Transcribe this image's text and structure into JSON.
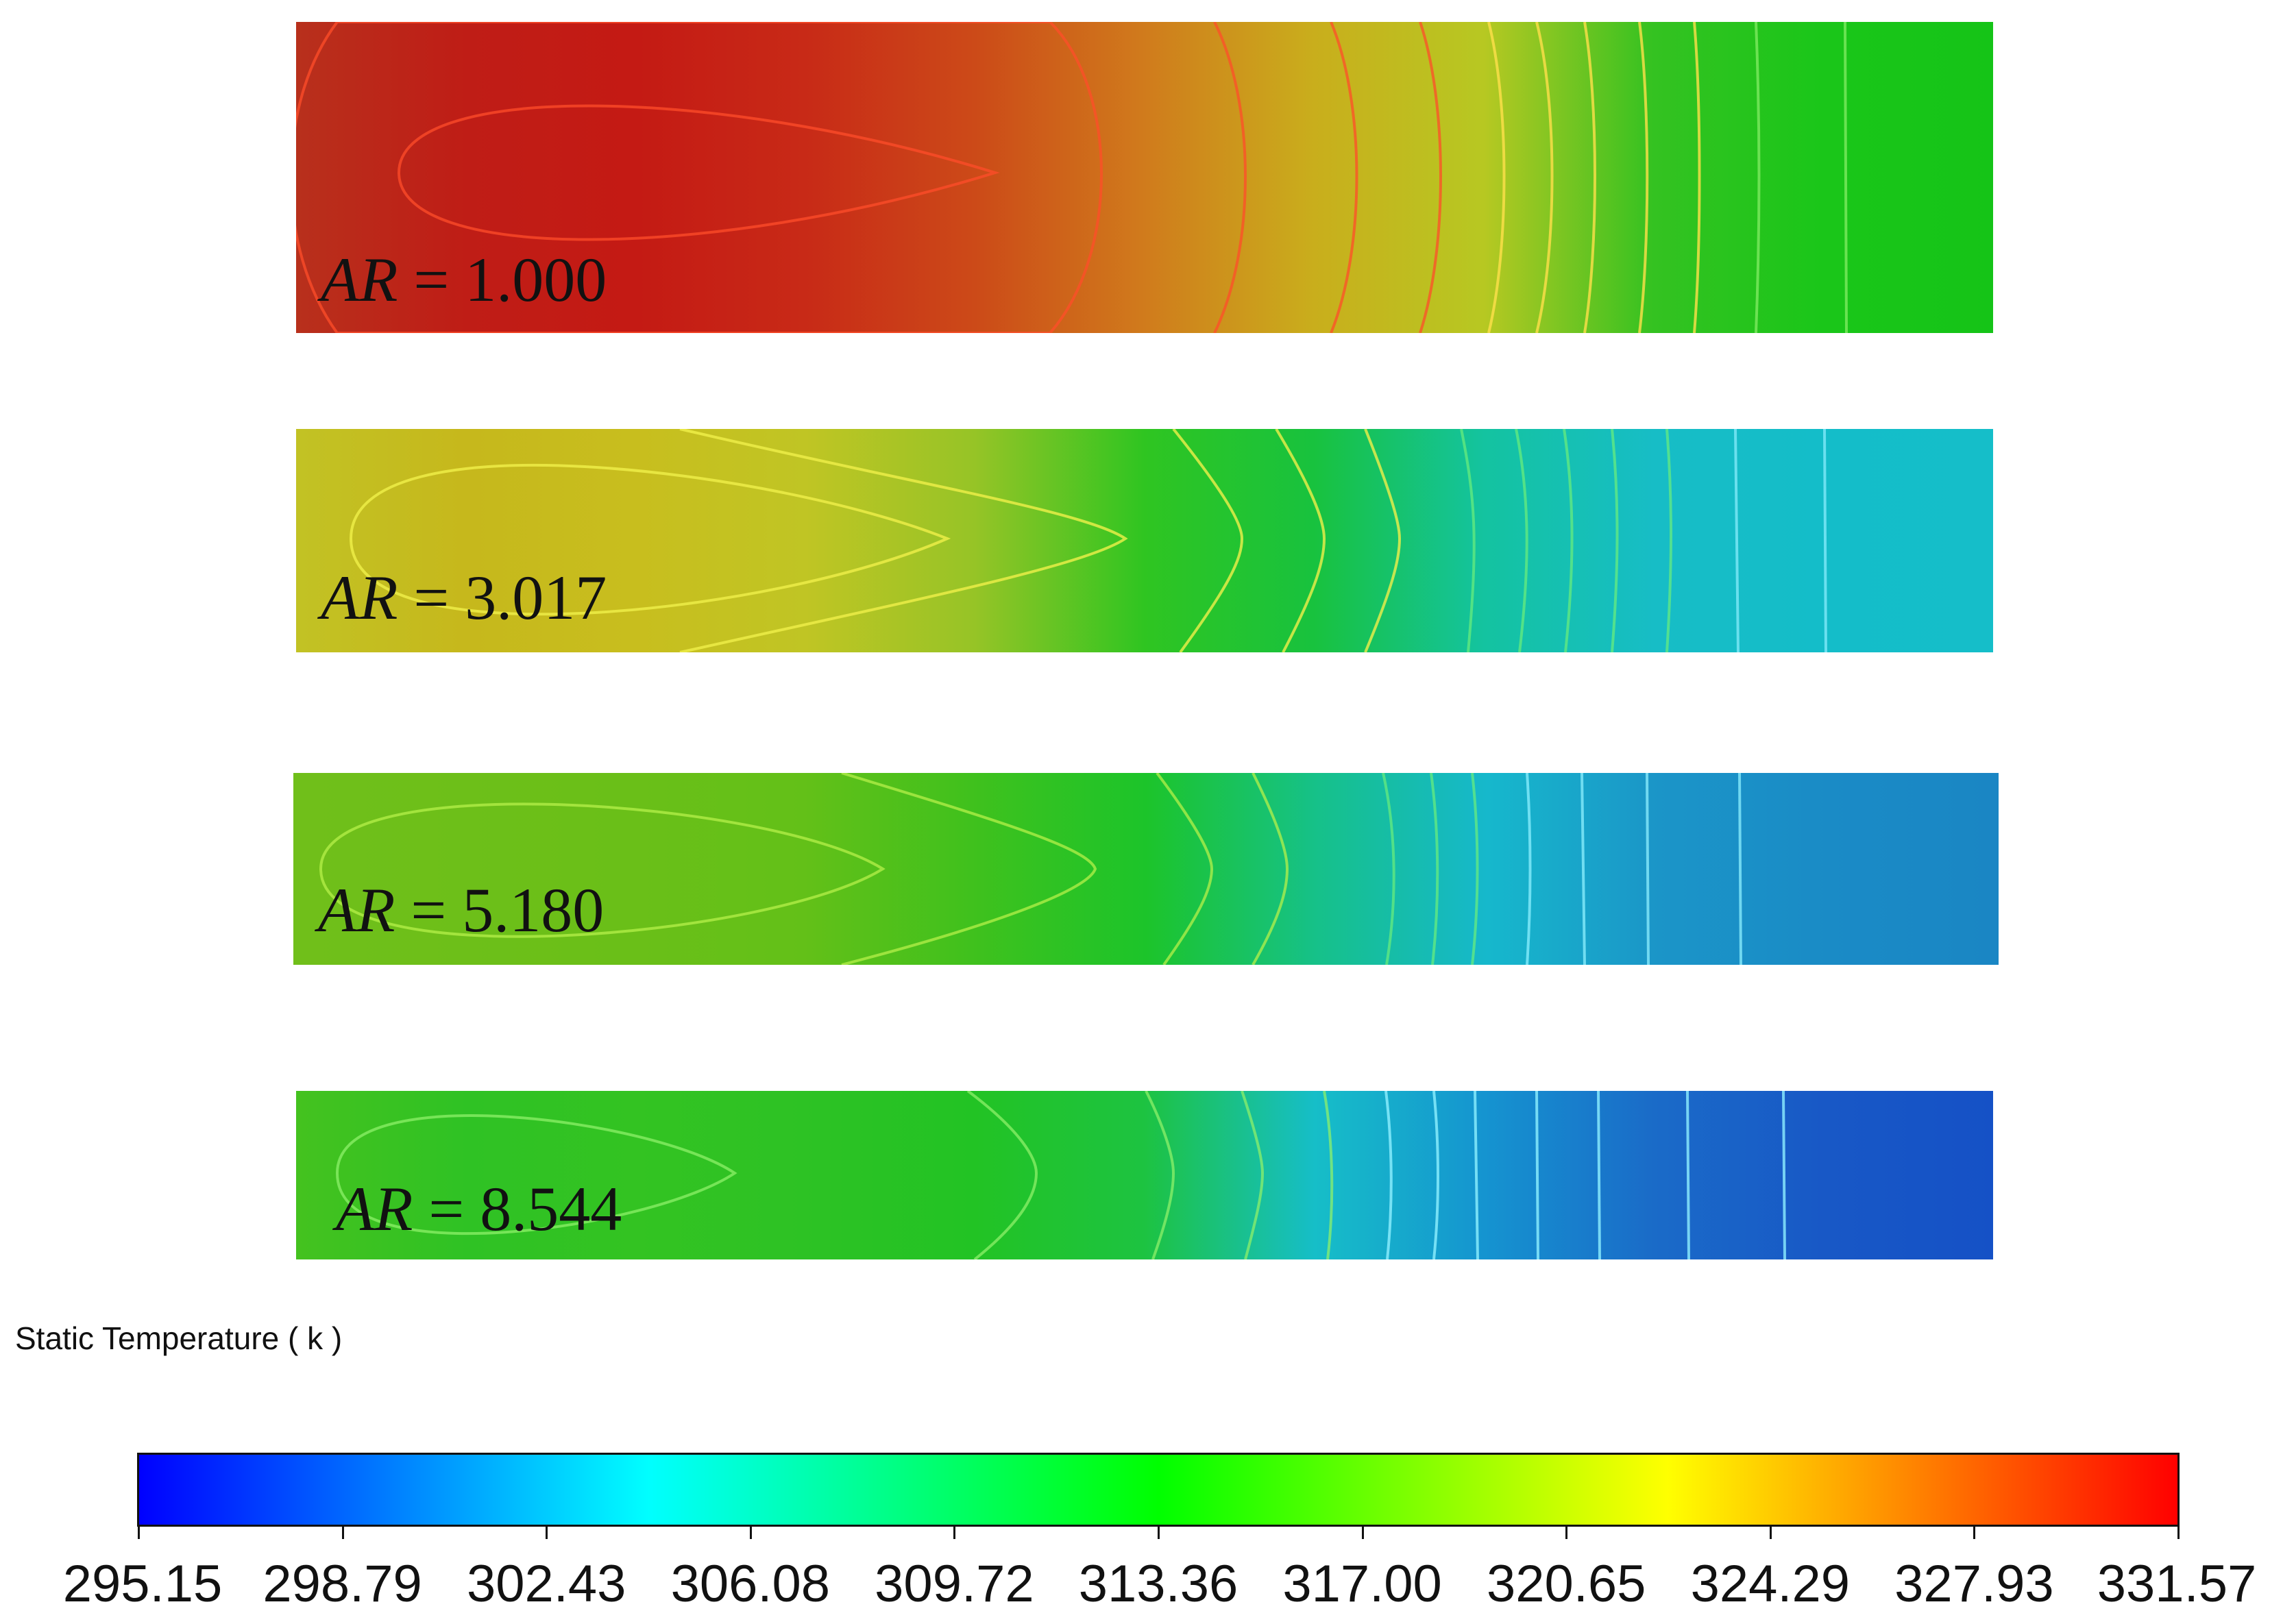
{
  "panels": [
    {
      "label_var": "AR",
      "label_eq": " = 1.000",
      "colors": [
        "#b8301c",
        "#bf1d16",
        "#c41a14",
        "#c82a17",
        "#cc4a18",
        "#d07b1c",
        "#c9ae1c",
        "#b7c822",
        "#34c221",
        "#1ac619",
        "#15c417"
      ]
    },
    {
      "label_var": "AR",
      "label_eq": " = 3.017",
      "colors": [
        "#c2c224",
        "#c6b81c",
        "#c8be1e",
        "#c0c524",
        "#96c426",
        "#2fc521",
        "#18c23e",
        "#14c3a0",
        "#17bdc6",
        "#14bdc9",
        "#15bec9"
      ]
    },
    {
      "label_var": "AR",
      "label_eq": " = 5.180",
      "colors": [
        "#70bf1a",
        "#6dbf19",
        "#6abf18",
        "#63c018",
        "#3fc11d",
        "#1cc42a",
        "#16c189",
        "#16b8cc",
        "#1b95c8",
        "#1a8bc6",
        "#1a86c4"
      ]
    },
    {
      "label_var": "AR",
      "label_eq": " = 8.544",
      "colors": [
        "#44c21f",
        "#2fc224",
        "#33c322",
        "#2dc224",
        "#22c324",
        "#1dc341",
        "#16bec8",
        "#1594d0",
        "#1a6bc8",
        "#1858c6",
        "#1551c6"
      ]
    }
  ],
  "legend": {
    "title": "Static Temperature ( k )",
    "stops": [
      "#0000ff",
      "#00ffff",
      "#00ff00",
      "#ffff00",
      "#ff0000"
    ],
    "ticks": [
      "295.15",
      "298.79",
      "302.43",
      "306.08",
      "309.72",
      "313.36",
      "317.00",
      "320.65",
      "324.29",
      "327.93",
      "331.57"
    ]
  }
}
